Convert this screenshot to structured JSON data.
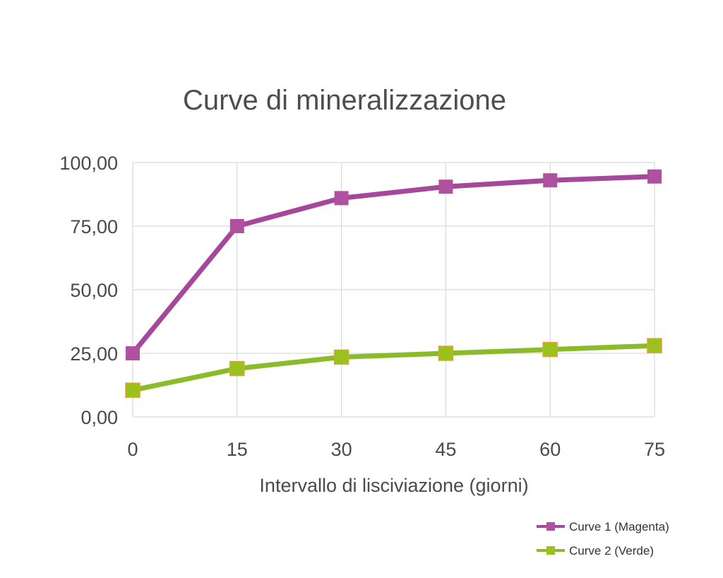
{
  "chart_data": {
    "type": "line",
    "title": "Curve di mineralizzazione",
    "xlabel": "Intervallo di lisciviazione (giorni)",
    "ylabel": "",
    "x": [
      0,
      15,
      30,
      45,
      60,
      75
    ],
    "x_tick_labels": [
      "0",
      "15",
      "30",
      "45",
      "60",
      "75"
    ],
    "ylim": [
      0,
      100
    ],
    "y_ticks": [
      0,
      25,
      50,
      75,
      100
    ],
    "y_tick_labels": [
      "0,00",
      "25,00",
      "50,00",
      "75,00",
      "100,00"
    ],
    "grid": true,
    "legend_position": "bottom-right",
    "series": [
      {
        "name": "Curve 1 (Magenta)",
        "color": "#a5479a",
        "marker_color": "#b0519f",
        "values": [
          25,
          75,
          86,
          90.5,
          93,
          94.5
        ]
      },
      {
        "name": "Curve 2 (Verde)",
        "color": "#8cbb2a",
        "marker_color": "#99c21d",
        "marker_edge": "#e4a02d",
        "values": [
          10.5,
          19,
          23.5,
          25,
          26.5,
          28
        ]
      }
    ]
  }
}
